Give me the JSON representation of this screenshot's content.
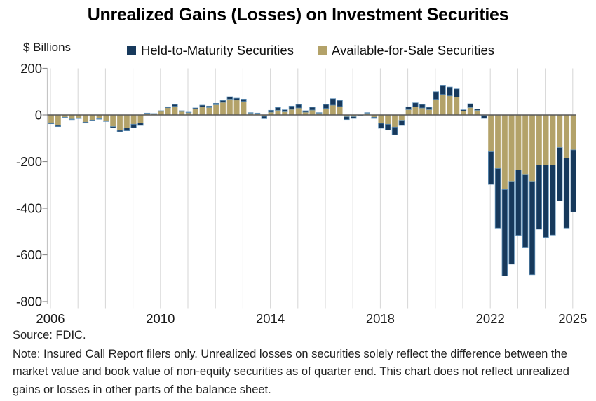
{
  "title": "Unrealized Gains (Losses) on Investment Securities",
  "y_axis_unit": "$ Billions",
  "legend": [
    {
      "label": "Held-to-Maturity Securities",
      "color": "#17395c"
    },
    {
      "label": "Available-for-Sale Securities",
      "color": "#b3a269"
    }
  ],
  "footer": {
    "source": "Source: FDIC.",
    "note": "Note: Insured Call Report filers only. Unrealized losses on securities solely reflect the difference between the market value and book value of non-equity securities as of quarter end. This chart does not reflect unrealized gains or losses in other parts of the balance sheet."
  },
  "colors": {
    "htm": "#17395c",
    "htm_edge": "#6191b8",
    "afs": "#b3a269",
    "afs_edge": "#c2b488",
    "gridline": "#d6d6d6",
    "axis_line": "#c4c4c4",
    "tick": "#8c8c8c",
    "zero_line": "#595959",
    "tick_label": "#1a1a1a"
  },
  "chart_data": {
    "type": "bar",
    "stacked": true,
    "title": "Unrealized Gains (Losses) on Investment Securities",
    "xlabel": "",
    "ylabel": "$ Billions",
    "ylim": [
      -800,
      200
    ],
    "ytick_interval": 200,
    "grid": "vertical-yearly",
    "legend_position": "top",
    "x_tick_labels": [
      "2006",
      "2010",
      "2014",
      "2018",
      "2022",
      "2025"
    ],
    "categories": [
      "2006Q1",
      "2006Q2",
      "2006Q3",
      "2006Q4",
      "2007Q1",
      "2007Q2",
      "2007Q3",
      "2007Q4",
      "2008Q1",
      "2008Q2",
      "2008Q3",
      "2008Q4",
      "2009Q1",
      "2009Q2",
      "2009Q3",
      "2009Q4",
      "2010Q1",
      "2010Q2",
      "2010Q3",
      "2010Q4",
      "2011Q1",
      "2011Q2",
      "2011Q3",
      "2011Q4",
      "2012Q1",
      "2012Q2",
      "2012Q3",
      "2012Q4",
      "2013Q1",
      "2013Q2",
      "2013Q3",
      "2013Q4",
      "2014Q1",
      "2014Q2",
      "2014Q3",
      "2014Q4",
      "2015Q1",
      "2015Q2",
      "2015Q3",
      "2015Q4",
      "2016Q1",
      "2016Q2",
      "2016Q3",
      "2016Q4",
      "2017Q1",
      "2017Q2",
      "2017Q3",
      "2017Q4",
      "2018Q1",
      "2018Q2",
      "2018Q3",
      "2018Q4",
      "2019Q1",
      "2019Q2",
      "2019Q3",
      "2019Q4",
      "2020Q1",
      "2020Q2",
      "2020Q3",
      "2020Q4",
      "2021Q1",
      "2021Q2",
      "2021Q3",
      "2021Q4",
      "2022Q1",
      "2022Q2",
      "2022Q3",
      "2022Q4",
      "2023Q1",
      "2023Q2",
      "2023Q3",
      "2023Q4",
      "2024Q1",
      "2024Q2",
      "2024Q3",
      "2024Q4",
      "2025Q1"
    ],
    "series": [
      {
        "name": "Available-for-Sale Securities",
        "color": "#b3a269",
        "values": [
          -34,
          -45,
          -10,
          -18,
          -13,
          -31,
          -22,
          -16,
          -25,
          -50,
          -66,
          -56,
          -40,
          -35,
          6,
          5,
          16,
          31,
          37,
          15,
          10,
          26,
          34,
          32,
          44,
          54,
          68,
          64,
          58,
          8,
          7,
          -6,
          12,
          20,
          14,
          24,
          30,
          12,
          21,
          8,
          28,
          42,
          36,
          -8,
          -8,
          -2,
          8,
          -10,
          -36,
          -40,
          -52,
          -23,
          23,
          35,
          30,
          23,
          67,
          88,
          82,
          77,
          17,
          32,
          20,
          -2,
          -158,
          -230,
          -320,
          -285,
          -236,
          -255,
          -285,
          -215,
          -215,
          -215,
          -140,
          -185,
          -150
        ]
      },
      {
        "name": "Held-to-Maturity Securities",
        "color": "#17395c",
        "values": [
          -4,
          -5,
          -2,
          -2,
          -2,
          -4,
          -3,
          -2,
          -3,
          -5,
          -6,
          -12,
          -15,
          -10,
          2,
          1,
          2,
          4,
          8,
          3,
          2,
          4,
          8,
          6,
          6,
          8,
          10,
          8,
          10,
          2,
          1,
          -10,
          8,
          12,
          8,
          14,
          15,
          6,
          12,
          2,
          17,
          28,
          26,
          -12,
          -7,
          -2,
          2,
          -5,
          -21,
          -25,
          -33,
          -22,
          12,
          17,
          15,
          10,
          33,
          40,
          38,
          35,
          5,
          16,
          5,
          -13,
          -140,
          -255,
          -370,
          -355,
          -280,
          -315,
          -400,
          -275,
          -310,
          -300,
          -228,
          -300,
          -266
        ]
      }
    ],
    "stack_order_from_axis": [
      "Available-for-Sale Securities",
      "Held-to-Maturity Securities"
    ]
  }
}
